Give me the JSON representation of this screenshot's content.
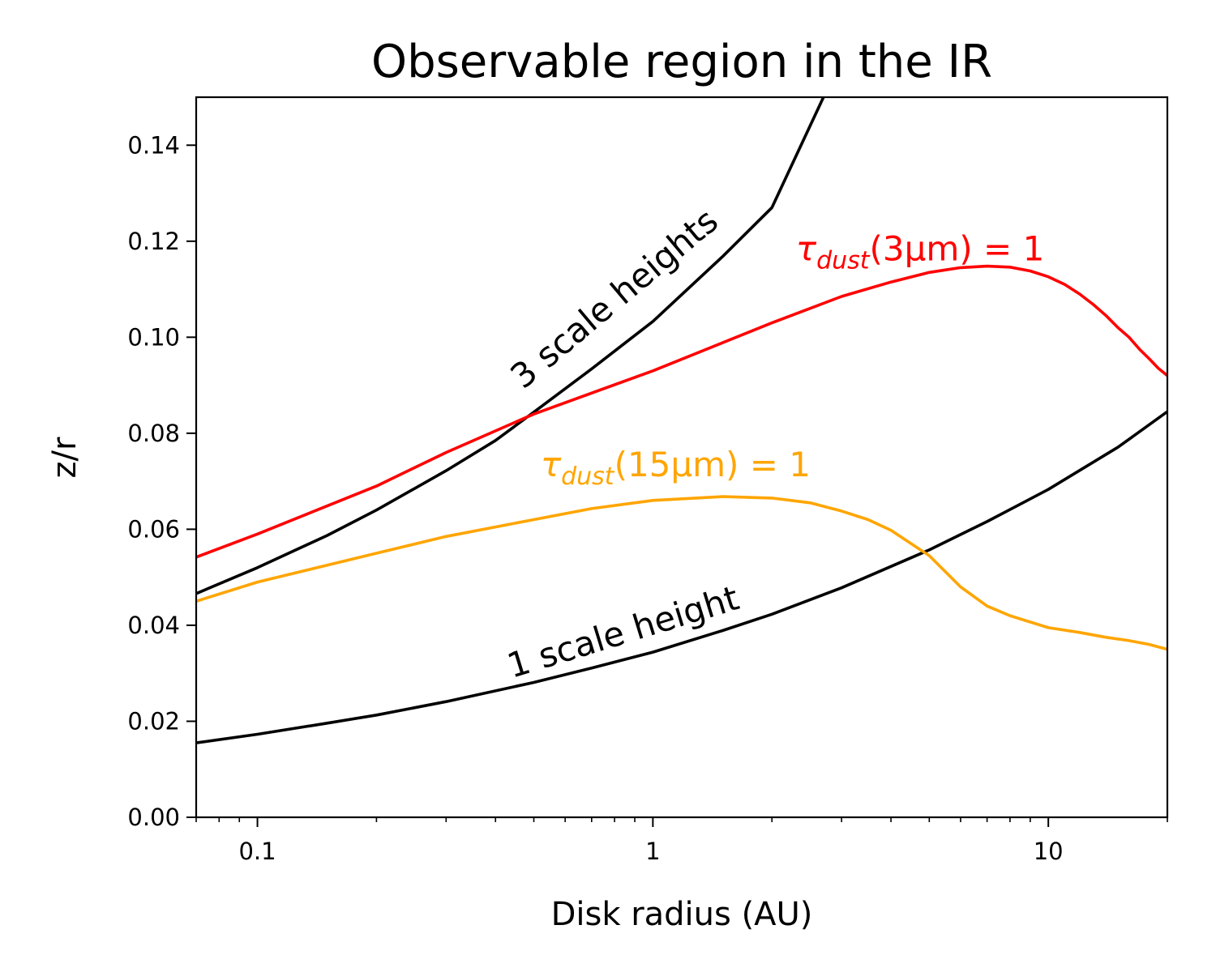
{
  "chart_data": {
    "type": "line",
    "title": "Observable region in the IR",
    "xlabel": "Disk radius (AU)",
    "ylabel": "z/r",
    "xscale": "log",
    "xlim": [
      0.07,
      20
    ],
    "ylim": [
      0,
      0.15
    ],
    "grid": false,
    "xticks": [
      {
        "value": 0.1,
        "label": "0.1"
      },
      {
        "value": 1,
        "label": "1"
      },
      {
        "value": 10,
        "label": "10"
      }
    ],
    "yticks": [
      {
        "value": 0.0,
        "label": "0.00"
      },
      {
        "value": 0.02,
        "label": "0.02"
      },
      {
        "value": 0.04,
        "label": "0.04"
      },
      {
        "value": 0.06,
        "label": "0.06"
      },
      {
        "value": 0.08,
        "label": "0.08"
      },
      {
        "value": 0.1,
        "label": "0.10"
      },
      {
        "value": 0.12,
        "label": "0.12"
      },
      {
        "value": 0.14,
        "label": "0.14"
      }
    ],
    "series": [
      {
        "name": "1 scale height",
        "color": "#000000",
        "x": [
          0.07,
          0.1,
          0.15,
          0.2,
          0.3,
          0.5,
          0.7,
          1,
          1.5,
          2,
          3,
          5,
          7,
          10,
          15,
          20
        ],
        "y": [
          0.0155,
          0.0173,
          0.0196,
          0.0213,
          0.0241,
          0.0281,
          0.0311,
          0.0344,
          0.0389,
          0.0423,
          0.0478,
          0.0557,
          0.0616,
          0.0683,
          0.0771,
          0.0845
        ]
      },
      {
        "name": "3 scale heights",
        "color": "#000000",
        "x": [
          0.07,
          0.1,
          0.15,
          0.2,
          0.3,
          0.4,
          0.5,
          0.7,
          1,
          1.5,
          2,
          2.7
        ],
        "y": [
          0.0466,
          0.052,
          0.0587,
          0.064,
          0.0722,
          0.0785,
          0.0844,
          0.0934,
          0.1033,
          0.1168,
          0.127,
          0.15
        ]
      },
      {
        "name": "τ_dust(3μm)=1",
        "color": "#ff0000",
        "x": [
          0.07,
          0.1,
          0.2,
          0.3,
          0.5,
          1,
          2,
          3,
          4,
          5,
          6,
          7,
          8,
          9,
          10,
          11,
          12,
          13,
          14,
          15,
          16,
          17,
          18,
          19,
          20
        ],
        "y": [
          0.0542,
          0.059,
          0.069,
          0.076,
          0.084,
          0.093,
          0.103,
          0.1085,
          0.1115,
          0.1135,
          0.1145,
          0.1148,
          0.1146,
          0.1138,
          0.1126,
          0.111,
          0.109,
          0.1068,
          0.1045,
          0.102,
          0.1,
          0.0975,
          0.0955,
          0.0935,
          0.092
        ]
      },
      {
        "name": "τ_dust(15μm)=1",
        "color": "#ffa500",
        "x": [
          0.07,
          0.1,
          0.2,
          0.3,
          0.5,
          0.7,
          1,
          1.5,
          2,
          2.5,
          3,
          3.5,
          4,
          5,
          6,
          7,
          8,
          10,
          12,
          14,
          16,
          18,
          20
        ],
        "y": [
          0.045,
          0.049,
          0.055,
          0.0585,
          0.062,
          0.0643,
          0.066,
          0.0668,
          0.0665,
          0.0655,
          0.0638,
          0.062,
          0.0598,
          0.0545,
          0.048,
          0.044,
          0.042,
          0.0395,
          0.0385,
          0.0375,
          0.0368,
          0.036,
          0.035
        ]
      }
    ],
    "annotations": [
      {
        "text": "3 scale heights",
        "color": "#000000",
        "x": 0.47,
        "y": 0.089,
        "rotation_deg": -40
      },
      {
        "text": "1 scale height",
        "color": "#000000",
        "x": 0.44,
        "y": 0.029,
        "rotation_deg": -17
      },
      {
        "text": "τ",
        "sub": "dust",
        "rest": "(3μm) = 1",
        "color": "#ff0000",
        "x": 2.3,
        "y": 0.116,
        "rotation_deg": 0
      },
      {
        "text": "τ",
        "sub": "dust",
        "rest": "(15μm) = 1",
        "color": "#ffa500",
        "x": 0.52,
        "y": 0.071,
        "rotation_deg": 0
      }
    ]
  }
}
